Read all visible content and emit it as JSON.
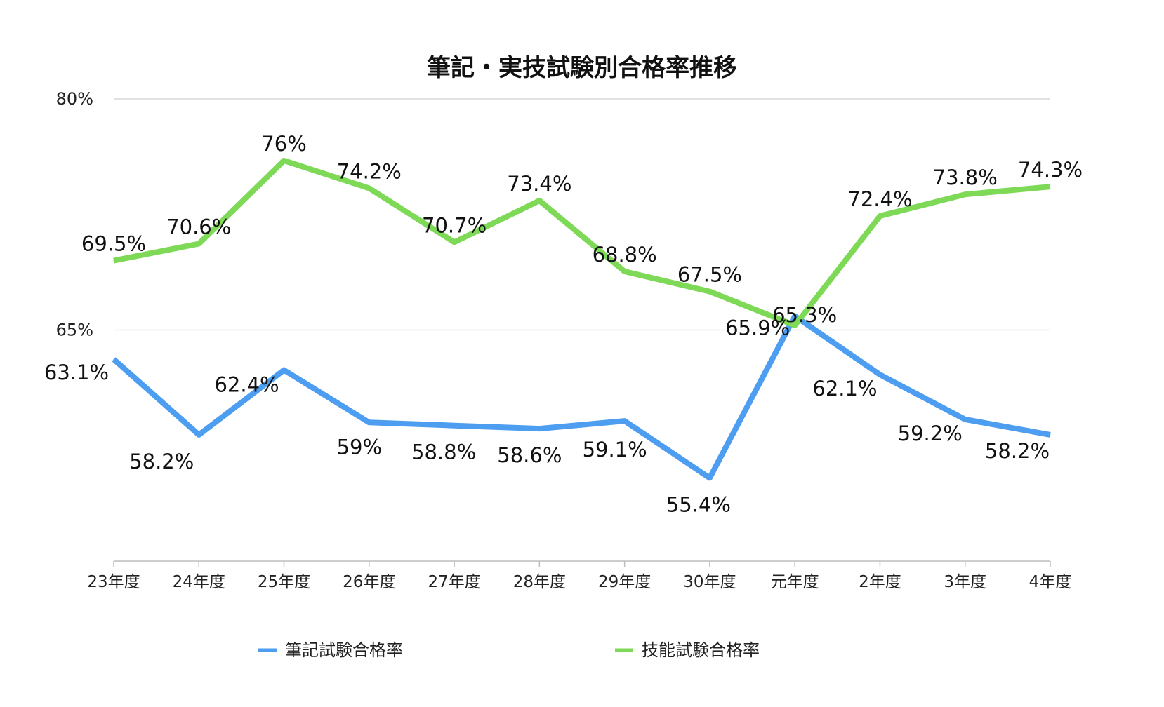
{
  "chart_data": {
    "type": "line",
    "title": "筆記・実技試験別合格率推移",
    "categories": [
      "23年度",
      "24年度",
      "25年度",
      "26年度",
      "27年度",
      "28年度",
      "29年度",
      "30年度",
      "元年度",
      "2年度",
      "3年度",
      "4年度"
    ],
    "ylim": [
      50,
      80
    ],
    "yticks": [
      {
        "value": 80,
        "label": "80%"
      },
      {
        "value": 65,
        "label": "65%"
      }
    ],
    "grid": true,
    "legend_position": "bottom",
    "series": [
      {
        "name": "筆記試験合格率",
        "color": "#4d9ef0",
        "values": [
          63.1,
          58.2,
          62.4,
          59,
          58.8,
          58.6,
          59.1,
          55.4,
          65.9,
          62.1,
          59.2,
          58.2
        ],
        "labels": [
          "63.1%",
          "58.2%",
          "62.4%",
          "59%",
          "58.8%",
          "58.6%",
          "59.1%",
          "55.4%",
          "65.9%",
          "62.1%",
          "59.2%",
          "58.2%"
        ]
      },
      {
        "name": "技能試験合格率",
        "color": "#7ed957",
        "values": [
          69.5,
          70.6,
          76,
          74.2,
          70.7,
          73.4,
          68.8,
          67.5,
          65.3,
          72.4,
          73.8,
          74.3
        ],
        "labels": [
          "69.5%",
          "70.6%",
          "76%",
          "74.2%",
          "70.7%",
          "73.4%",
          "68.8%",
          "67.5%",
          "65.3%",
          "72.4%",
          "73.8%",
          "74.3%"
        ]
      }
    ]
  }
}
